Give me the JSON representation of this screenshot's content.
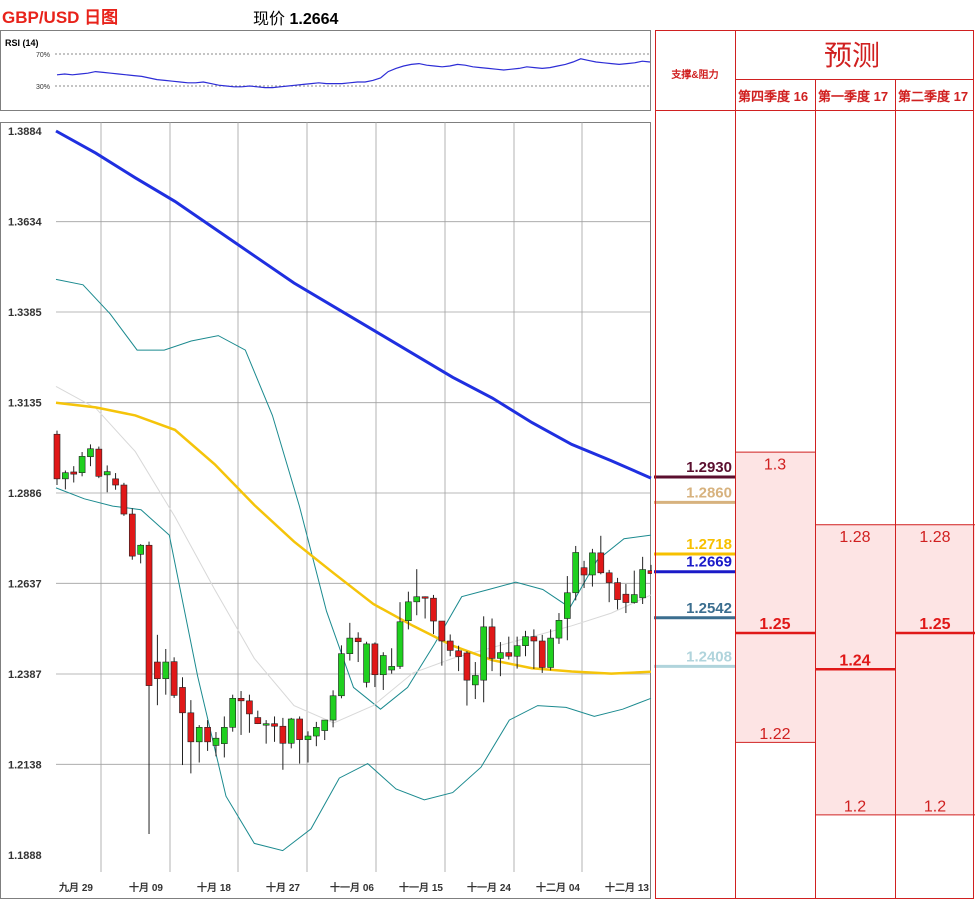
{
  "header": {
    "title": "GBP/USD 日图",
    "price_prefix": "现价",
    "price": "1.2664"
  },
  "rsi": {
    "label": "RSI (14)",
    "levels": [
      "70%",
      "30%"
    ],
    "values": [
      44,
      45,
      44,
      45,
      46,
      48,
      47,
      46,
      45,
      44,
      43,
      42,
      40,
      38,
      37,
      36,
      35,
      34,
      34,
      35,
      33,
      31,
      30,
      29,
      29,
      30,
      29,
      28,
      28,
      29,
      30,
      31,
      32,
      33,
      34,
      33,
      33,
      33,
      34,
      35,
      35,
      37,
      40,
      48,
      52,
      55,
      57,
      58,
      56,
      55,
      54,
      55,
      57,
      56,
      54,
      53,
      52,
      51,
      50,
      51,
      52,
      54,
      53,
      52,
      53,
      55,
      57,
      60,
      64,
      62,
      60,
      59,
      58,
      57,
      58,
      59,
      61,
      60
    ]
  },
  "chart_data": {
    "type": "candlestick",
    "y_ticks": [
      "1.3884",
      "1.3634",
      "1.3385",
      "1.3135",
      "1.2886",
      "1.2637",
      "1.2387",
      "1.2138",
      "1.1888"
    ],
    "x_ticks": [
      "九月 29",
      "十月 09",
      "十月 18",
      "十月 27",
      "十一月 06",
      "十一月 15",
      "十一月 24",
      "十二月 04",
      "十二月 13"
    ],
    "ylim": [
      1.1888,
      1.3884
    ],
    "candles": [
      [
        1.3048,
        1.3058,
        1.2908,
        1.2925
      ],
      [
        1.2925,
        1.2948,
        1.2896,
        1.2942
      ],
      [
        1.2944,
        1.296,
        1.2915,
        1.2938
      ],
      [
        1.2942,
        1.2999,
        1.2932,
        1.2987
      ],
      [
        1.2986,
        1.302,
        1.296,
        1.3008
      ],
      [
        1.3007,
        1.3014,
        1.2927,
        1.2932
      ],
      [
        1.2936,
        1.2962,
        1.2888,
        1.2945
      ],
      [
        1.2925,
        1.2941,
        1.2895,
        1.2908
      ],
      [
        1.2908,
        1.2914,
        1.2823,
        1.2828
      ],
      [
        1.2828,
        1.2844,
        1.2702,
        1.2712
      ],
      [
        1.2717,
        1.2745,
        1.2692,
        1.2742
      ],
      [
        1.2742,
        1.2752,
        1.1946,
        1.2355
      ],
      [
        1.242,
        1.2495,
        1.2301,
        1.2374
      ],
      [
        1.2374,
        1.2456,
        1.233,
        1.242
      ],
      [
        1.2421,
        1.2433,
        1.2321,
        1.2328
      ],
      [
        1.235,
        1.2378,
        1.2136,
        1.228
      ],
      [
        1.228,
        1.2315,
        1.2113,
        1.22
      ],
      [
        1.22,
        1.2246,
        1.2143,
        1.224
      ],
      [
        1.224,
        1.226,
        1.2175,
        1.22
      ],
      [
        1.219,
        1.2227,
        1.216,
        1.221
      ],
      [
        1.2195,
        1.227,
        1.2157,
        1.224
      ],
      [
        1.224,
        1.233,
        1.2228,
        1.232
      ],
      [
        1.232,
        1.234,
        1.2219,
        1.2313
      ],
      [
        1.2313,
        1.233,
        1.2225,
        1.2277
      ],
      [
        1.2267,
        1.2286,
        1.2249,
        1.225
      ],
      [
        1.225,
        1.226,
        1.2195,
        1.225
      ],
      [
        1.225,
        1.227,
        1.22,
        1.2243
      ],
      [
        1.2243,
        1.2266,
        1.2123,
        1.2196
      ],
      [
        1.2196,
        1.2266,
        1.2182,
        1.2263
      ],
      [
        1.2263,
        1.227,
        1.214,
        1.2206
      ],
      [
        1.2206,
        1.2229,
        1.2143,
        1.2216
      ],
      [
        1.2216,
        1.2255,
        1.2188,
        1.224
      ],
      [
        1.2231,
        1.2259,
        1.2205,
        1.226
      ],
      [
        1.226,
        1.2342,
        1.224,
        1.2327
      ],
      [
        1.2327,
        1.2466,
        1.232,
        1.2443
      ],
      [
        1.2443,
        1.2528,
        1.2424,
        1.2486
      ],
      [
        1.2486,
        1.2502,
        1.242,
        1.2476
      ],
      [
        1.2364,
        1.2476,
        1.235,
        1.247
      ],
      [
        1.247,
        1.2474,
        1.2351,
        1.2385
      ],
      [
        1.2385,
        1.2447,
        1.2343,
        1.2438
      ],
      [
        1.2398,
        1.2458,
        1.2388,
        1.2408
      ],
      [
        1.2408,
        1.2585,
        1.2401,
        1.2531
      ],
      [
        1.2534,
        1.2614,
        1.251,
        1.2586
      ],
      [
        1.2586,
        1.2676,
        1.2549,
        1.26
      ],
      [
        1.26,
        1.2601,
        1.254,
        1.2598
      ],
      [
        1.2596,
        1.2605,
        1.2497,
        1.2533
      ],
      [
        1.2533,
        1.2533,
        1.241,
        1.2478
      ],
      [
        1.2478,
        1.2496,
        1.2436,
        1.2452
      ],
      [
        1.2451,
        1.2465,
        1.2395,
        1.2435
      ],
      [
        1.2445,
        1.245,
        1.23,
        1.237
      ],
      [
        1.2357,
        1.242,
        1.2318,
        1.2383
      ],
      [
        1.237,
        1.2546,
        1.2309,
        1.2517
      ],
      [
        1.2517,
        1.254,
        1.2395,
        1.243
      ],
      [
        1.243,
        1.2475,
        1.2381,
        1.2446
      ],
      [
        1.2446,
        1.249,
        1.2427,
        1.2436
      ],
      [
        1.2436,
        1.249,
        1.2402,
        1.2465
      ],
      [
        1.2465,
        1.2506,
        1.2436,
        1.249
      ],
      [
        1.249,
        1.251,
        1.2401,
        1.2478
      ],
      [
        1.2478,
        1.2495,
        1.239,
        1.2405
      ],
      [
        1.2405,
        1.251,
        1.2397,
        1.2486
      ],
      [
        1.2486,
        1.2555,
        1.247,
        1.2535
      ],
      [
        1.254,
        1.2657,
        1.248,
        1.2611
      ],
      [
        1.2611,
        1.274,
        1.259,
        1.2722
      ],
      [
        1.268,
        1.2699,
        1.2624,
        1.266
      ],
      [
        1.266,
        1.2732,
        1.2628,
        1.2721
      ],
      [
        1.2721,
        1.2768,
        1.2662,
        1.2666
      ],
      [
        1.2666,
        1.2674,
        1.2585,
        1.2639
      ],
      [
        1.2639,
        1.2652,
        1.2565,
        1.2592
      ],
      [
        1.2607,
        1.2635,
        1.2555,
        1.2584
      ],
      [
        1.2584,
        1.2672,
        1.2581,
        1.2606
      ],
      [
        1.2597,
        1.271,
        1.258,
        1.2675
      ],
      [
        1.2672,
        1.2688,
        1.2666,
        1.2664
      ]
    ],
    "ma_blue": [
      1.3884,
      1.3823,
      1.3755,
      1.369,
      1.3615,
      1.354,
      1.3465,
      1.34,
      1.3335,
      1.327,
      1.3205,
      1.3148,
      1.308,
      1.302,
      1.2975,
      1.2927
    ],
    "ma_gold": [
      1.3135,
      1.3122,
      1.31,
      1.306,
      1.2965,
      1.2853,
      1.2752,
      1.2665,
      1.258,
      1.252,
      1.2465,
      1.2425,
      1.2403,
      1.2394,
      1.2388,
      1.2393
    ],
    "ma_light": [
      1.318,
      1.312,
      1.3,
      1.282,
      1.262,
      1.243,
      1.23,
      1.2252,
      1.23,
      1.239,
      1.243,
      1.246,
      1.249,
      1.252,
      1.2555,
      1.2605
    ],
    "boll_upper": [
      1.3475,
      1.346,
      1.338,
      1.328,
      1.328,
      1.3305,
      1.332,
      1.328,
      1.31,
      1.285,
      1.256,
      1.235,
      1.229,
      1.235,
      1.247,
      1.26,
      1.262,
      1.264,
      1.262,
      1.257,
      1.27,
      1.276,
      1.277
    ],
    "boll_lower": [
      1.29,
      1.287,
      1.285,
      1.284,
      1.277,
      1.238,
      1.205,
      1.192,
      1.19,
      1.196,
      1.21,
      1.214,
      1.207,
      1.204,
      1.206,
      1.213,
      1.226,
      1.23,
      1.2295,
      1.227,
      1.229,
      1.232
    ],
    "levels": [
      {
        "value": "1.2930",
        "color": "#5b0f2f"
      },
      {
        "value": "1.2860",
        "color": "#d7b27e"
      },
      {
        "value": "1.2718",
        "color": "#f7c000"
      },
      {
        "value": "1.2669",
        "color": "#1a1ac8"
      },
      {
        "value": "1.2542",
        "color": "#3b6e8f"
      },
      {
        "value": "1.2408",
        "color": "#b0d4dc"
      }
    ]
  },
  "forecast": {
    "title": "预测",
    "sr_header": "支撑&阻力",
    "columns": [
      {
        "name": "第四季度 16",
        "high": "1.3",
        "mid": "1.25",
        "low": "1.22"
      },
      {
        "name": "第一季度 17",
        "high": "1.28",
        "mid": "1.24",
        "low": "1.2"
      },
      {
        "name": "第二季度 17",
        "high": "1.28",
        "mid": "1.25",
        "low": "1.2"
      }
    ]
  }
}
